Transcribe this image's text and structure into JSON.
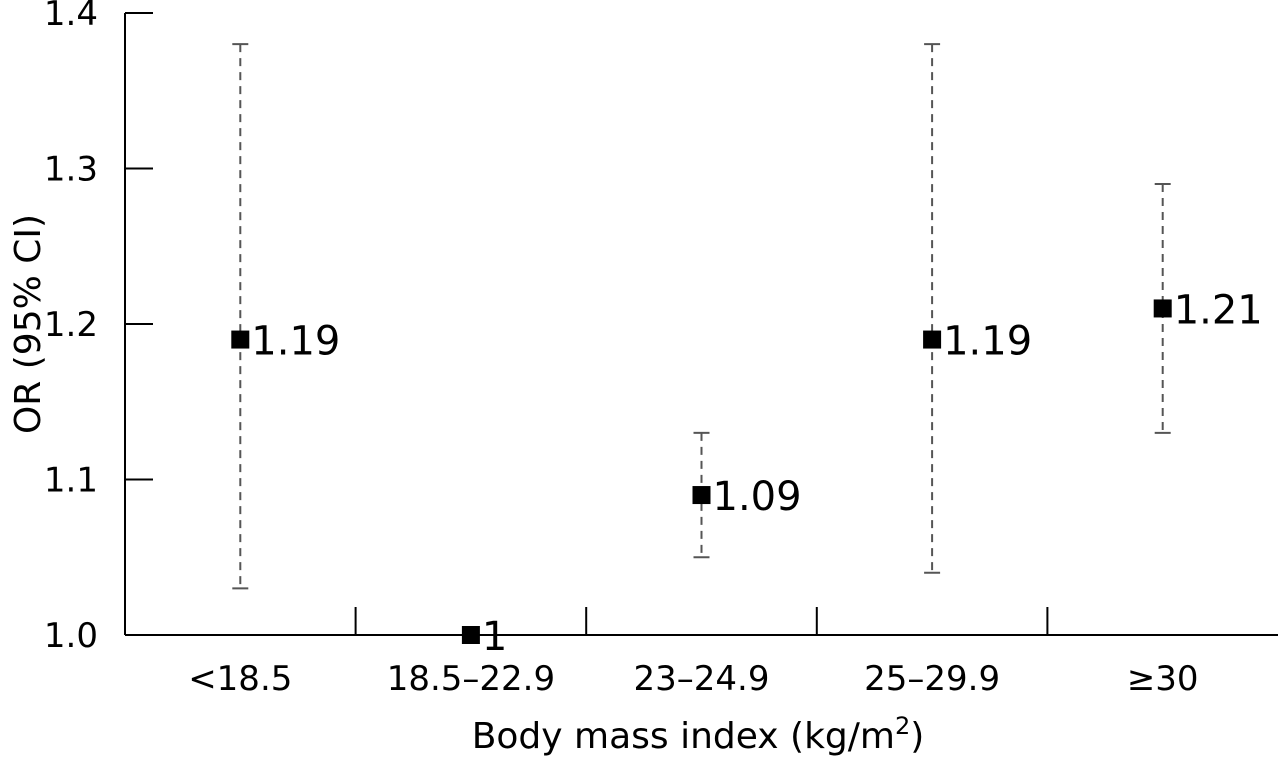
{
  "chart_data": {
    "type": "scatter",
    "title": "",
    "xlabel": "Body mass index (kg/m",
    "xlabel_superscript": "2",
    "xlabel_suffix": ")",
    "ylabel": "OR (95% CI)",
    "ylim": [
      1.0,
      1.4
    ],
    "yticks": [
      "1.0",
      "1.1",
      "1.2",
      "1.3",
      "1.4"
    ],
    "yticks_values": [
      1.0,
      1.1,
      1.2,
      1.3,
      1.4
    ],
    "categories": [
      "<18.5",
      "18.5–22.9",
      "23–24.9",
      "25–29.9",
      "≥30"
    ],
    "grid": false,
    "error_bar_style": "dashed",
    "points": [
      {
        "category": "<18.5",
        "or": 1.19,
        "ci_low": 1.03,
        "ci_high": 1.38,
        "label": "1.19"
      },
      {
        "category": "18.5–22.9",
        "or": 1.0,
        "label": "1"
      },
      {
        "category": "23–24.9",
        "or": 1.09,
        "ci_low": 1.05,
        "ci_high": 1.13,
        "label": "1.09"
      },
      {
        "category": "25–29.9",
        "or": 1.19,
        "ci_low": 1.04,
        "ci_high": 1.38,
        "label": "1.19"
      },
      {
        "category": "≥30",
        "or": 1.21,
        "ci_low": 1.13,
        "ci_high": 1.29,
        "label": "1.21"
      }
    ]
  }
}
